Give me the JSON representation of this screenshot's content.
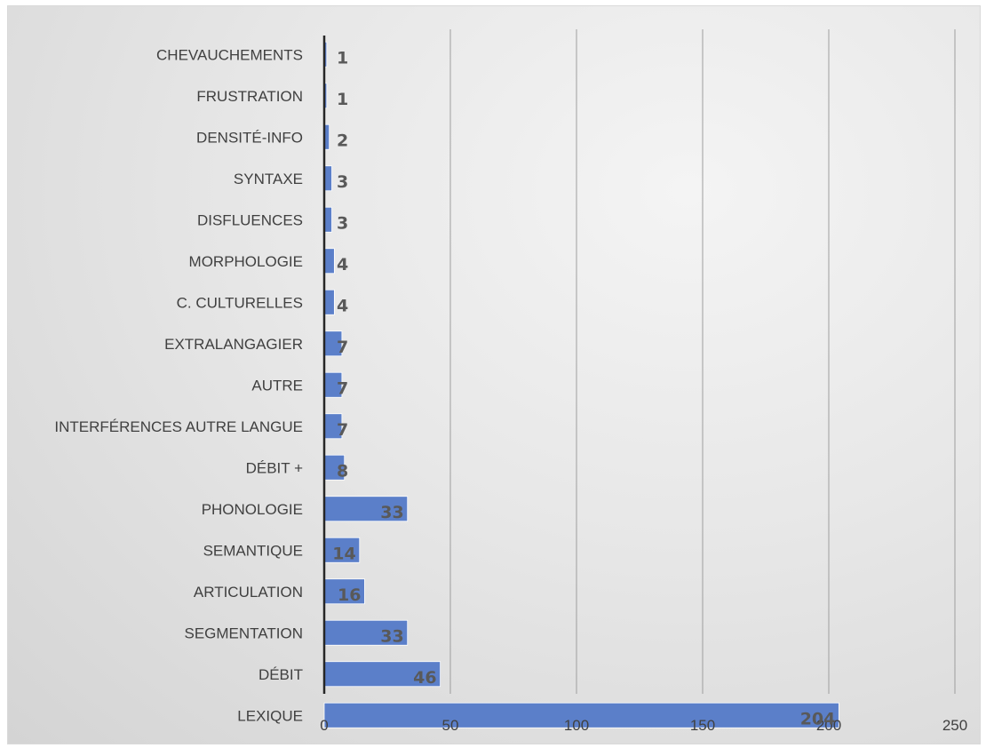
{
  "chart_data": {
    "type": "bar",
    "orientation": "horizontal",
    "categories": [
      "CHEVAUCHEMENTS",
      "FRUSTRATION",
      "DENSITÉ-INFO",
      "SYNTAXE",
      "DISFLUENCES",
      "MORPHOLOGIE",
      "C. CULTURELLES ",
      "EXTRALANGAGIER",
      "AUTRE",
      "INTERFÉRENCES AUTRE LANGUE",
      "DÉBIT +",
      "PHONOLOGIE",
      "SEMANTIQUE",
      "ARTICULATION",
      "SEGMENTATION",
      "DÉBIT",
      "LEXIQUE"
    ],
    "values": [
      1,
      1,
      2,
      3,
      3,
      4,
      4,
      7,
      7,
      7,
      8,
      33,
      14,
      16,
      33,
      46,
      204
    ],
    "data_labels": [
      "1",
      "1",
      "2",
      "3",
      "3",
      "4",
      "4",
      "7",
      "7",
      "7",
      "8",
      "33",
      "14",
      "16",
      "33",
      "46",
      "204"
    ],
    "x_ticks": [
      "0",
      "50",
      "100",
      "150",
      "200",
      "250"
    ],
    "xlim": [
      0,
      250
    ],
    "grid": "vertical",
    "bar_color": "#5b7fc9",
    "title": "",
    "xlabel": "",
    "ylabel": ""
  }
}
